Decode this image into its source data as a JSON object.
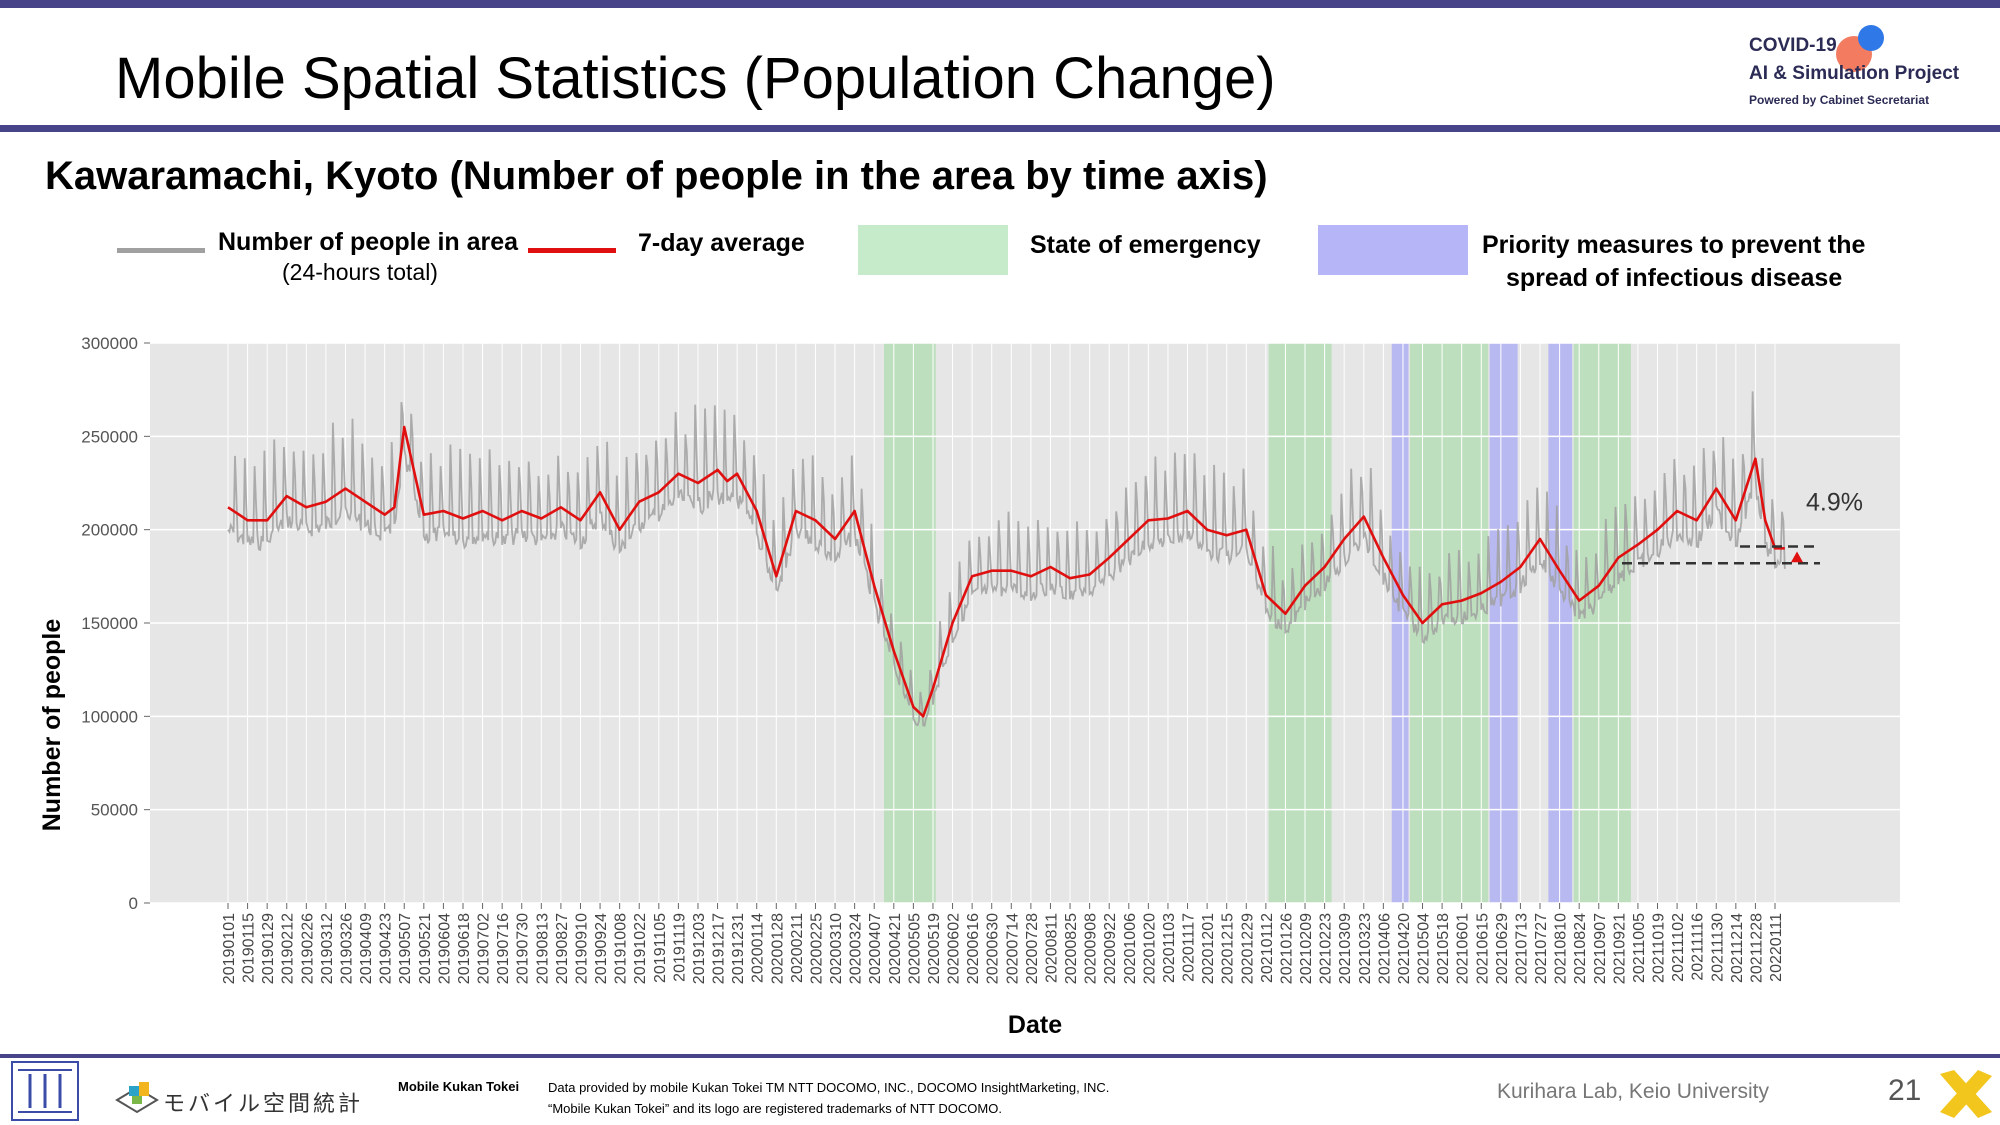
{
  "header": {
    "title": "Mobile Spatial Statistics (Population Change)",
    "logo_line1": "COVID-19",
    "logo_line2": "AI & Simulation Project",
    "logo_line3": "Powered by Cabinet Secretariat"
  },
  "subtitle": "Kawaramachi, Kyoto (Number of people in the area by time axis)",
  "legend": {
    "raw_label": "Number of people in area",
    "raw_sub": "(24-hours total)",
    "avg_label": "7-day average",
    "emergency_label": "State of emergency",
    "priority_label_1": "Priority measures to prevent the",
    "priority_label_2": "spread of infectious disease"
  },
  "colors": {
    "accent": "#48448a",
    "raw_line": "#a0a0a0",
    "avg_line": "#e01010",
    "emergency": "#a8dca8",
    "priority": "#aaaaf5",
    "plot_bg": "#e6e6e6"
  },
  "chart_data": {
    "type": "line",
    "xlabel": "Date",
    "ylabel": "Number of people",
    "ylim": [
      0,
      300000
    ],
    "yticks": [
      0,
      50000,
      100000,
      150000,
      200000,
      250000,
      300000
    ],
    "ytick_labels": [
      "0",
      "50000",
      "100000",
      "150000",
      "200000",
      "250000",
      "300000"
    ],
    "x_tick_labels": [
      "20190101",
      "20190115",
      "20190129",
      "20190212",
      "20190226",
      "20190312",
      "20190326",
      "20190409",
      "20190423",
      "20190507",
      "20190521",
      "20190604",
      "20190618",
      "20190702",
      "20190716",
      "20190730",
      "20190813",
      "20190827",
      "20190910",
      "20190924",
      "20191008",
      "20191022",
      "20191105",
      "20191119",
      "20191203",
      "20191217",
      "20191231",
      "20200114",
      "20200128",
      "20200211",
      "20200225",
      "20200310",
      "20200324",
      "20200407",
      "20200421",
      "20200505",
      "20200519",
      "20200602",
      "20200616",
      "20200630",
      "20200714",
      "20200728",
      "20200811",
      "20200825",
      "20200908",
      "20200922",
      "20201006",
      "20201020",
      "20201103",
      "20201117",
      "20201201",
      "20201215",
      "20201229",
      "20210112",
      "20210126",
      "20210209",
      "20210223",
      "20210309",
      "20210323",
      "20210406",
      "20210420",
      "20210504",
      "20210518",
      "20210601",
      "20210615",
      "20210629",
      "20210713",
      "20210727",
      "20210810",
      "20210824",
      "20210907",
      "20210921",
      "20211005",
      "20211019",
      "20211102",
      "20211116",
      "20211130",
      "20211214",
      "20211228",
      "20220111"
    ],
    "grid": true,
    "series": [
      {
        "name": "7-day average",
        "dates": [
          "20190101",
          "20190115",
          "20190129",
          "20190212",
          "20190226",
          "20190312",
          "20190326",
          "20190409",
          "20190423",
          "20190430",
          "20190507",
          "20190521",
          "20190604",
          "20190618",
          "20190702",
          "20190716",
          "20190730",
          "20190813",
          "20190827",
          "20190910",
          "20190924",
          "20191008",
          "20191022",
          "20191105",
          "20191119",
          "20191203",
          "20191217",
          "20191224",
          "20191231",
          "20200114",
          "20200128",
          "20200211",
          "20200225",
          "20200310",
          "20200324",
          "20200407",
          "20200421",
          "20200505",
          "20200512",
          "20200519",
          "20200602",
          "20200616",
          "20200630",
          "20200714",
          "20200728",
          "20200811",
          "20200825",
          "20200908",
          "20200922",
          "20201006",
          "20201020",
          "20201103",
          "20201117",
          "20201201",
          "20201215",
          "20201229",
          "20210112",
          "20210126",
          "20210209",
          "20210223",
          "20210309",
          "20210323",
          "20210406",
          "20210420",
          "20210504",
          "20210518",
          "20210601",
          "20210615",
          "20210629",
          "20210713",
          "20210727",
          "20210810",
          "20210824",
          "20210907",
          "20210921",
          "20211005",
          "20211019",
          "20211102",
          "20211116",
          "20211130",
          "20211214",
          "20211228",
          "20220104",
          "20220111",
          "20220118"
        ],
        "values": [
          212000,
          205000,
          205000,
          218000,
          212000,
          215000,
          222000,
          215000,
          208000,
          212000,
          255000,
          208000,
          210000,
          206000,
          210000,
          205000,
          210000,
          206000,
          212000,
          205000,
          220000,
          200000,
          215000,
          220000,
          230000,
          225000,
          232000,
          226000,
          230000,
          210000,
          175000,
          210000,
          205000,
          195000,
          210000,
          170000,
          135000,
          105000,
          100000,
          115000,
          150000,
          175000,
          178000,
          178000,
          175000,
          180000,
          174000,
          176000,
          185000,
          195000,
          205000,
          206000,
          210000,
          200000,
          197000,
          200000,
          165000,
          155000,
          170000,
          180000,
          195000,
          207000,
          185000,
          165000,
          150000,
          160000,
          162000,
          166000,
          172000,
          180000,
          195000,
          178000,
          162000,
          170000,
          185000,
          192000,
          200000,
          210000,
          205000,
          222000,
          205000,
          238000,
          205000,
          190000,
          190000
        ],
        "note_values": "7-day moving average, approximate"
      },
      {
        "name": "Number of people in area",
        "dates": [
          "20190101",
          "20190115",
          "20190129",
          "20190212",
          "20190226",
          "20190312",
          "20190326",
          "20190409",
          "20190423",
          "20190430",
          "20190507",
          "20190521",
          "20190604",
          "20190618",
          "20190702",
          "20190716",
          "20190730",
          "20190813",
          "20190827",
          "20190910",
          "20190924",
          "20191008",
          "20191022",
          "20191105",
          "20191119",
          "20191203",
          "20191217",
          "20191224",
          "20191231",
          "20200114",
          "20200128",
          "20200211",
          "20200225",
          "20200310",
          "20200324",
          "20200407",
          "20200421",
          "20200505",
          "20200512",
          "20200519",
          "20200602",
          "20200616",
          "20200630",
          "20200714",
          "20200728",
          "20200811",
          "20200825",
          "20200908",
          "20200922",
          "20201006",
          "20201020",
          "20201103",
          "20201117",
          "20201201",
          "20201215",
          "20201229",
          "20210112",
          "20210126",
          "20210209",
          "20210223",
          "20210309",
          "20210323",
          "20210406",
          "20210420",
          "20210504",
          "20210518",
          "20210601",
          "20210615",
          "20210629",
          "20210713",
          "20210727",
          "20210810",
          "20210824",
          "20210907",
          "20210921",
          "20211005",
          "20211019",
          "20211102",
          "20211116",
          "20211130",
          "20211214",
          "20211228",
          "20220104",
          "20220111",
          "20220118"
        ],
        "values": [
          212000,
          205000,
          205000,
          218000,
          212000,
          215000,
          222000,
          215000,
          208000,
          212000,
          255000,
          208000,
          210000,
          206000,
          210000,
          205000,
          210000,
          206000,
          212000,
          205000,
          220000,
          200000,
          215000,
          220000,
          230000,
          225000,
          232000,
          226000,
          230000,
          210000,
          175000,
          210000,
          205000,
          195000,
          210000,
          170000,
          135000,
          105000,
          100000,
          115000,
          150000,
          175000,
          178000,
          178000,
          175000,
          180000,
          174000,
          176000,
          185000,
          195000,
          205000,
          206000,
          210000,
          200000,
          197000,
          200000,
          165000,
          155000,
          170000,
          180000,
          195000,
          207000,
          185000,
          165000,
          150000,
          160000,
          162000,
          166000,
          172000,
          180000,
          195000,
          178000,
          162000,
          170000,
          185000,
          192000,
          200000,
          210000,
          205000,
          222000,
          205000,
          238000,
          205000,
          190000,
          190000
        ],
        "daily_swing_upper": 30000,
        "daily_swing_lower": 15000
      }
    ],
    "shaded_periods": [
      {
        "kind": "State of emergency",
        "start": "20200414",
        "end": "20200521"
      },
      {
        "kind": "State of emergency",
        "start": "20210114",
        "end": "20210228"
      },
      {
        "kind": "Priority measures to prevent the spread of infectious disease",
        "start": "20210412",
        "end": "20210424"
      },
      {
        "kind": "State of emergency",
        "start": "20210425",
        "end": "20210620"
      },
      {
        "kind": "Priority measures to prevent the spread of infectious disease",
        "start": "20210621",
        "end": "20210711"
      },
      {
        "kind": "Priority measures to prevent the spread of infectious disease",
        "start": "20210802",
        "end": "20210819"
      },
      {
        "kind": "State of emergency",
        "start": "20210820",
        "end": "20210930"
      }
    ],
    "annotation": {
      "text": "4.9%",
      "upper_value": 191000,
      "lower_value": 182000
    }
  },
  "footer": {
    "brand_jp": "モバイル空間統計",
    "brand_en": "Mobile Kukan Tokei",
    "credit_1": "Data provided by mobile Kukan Tokei TM NTT DOCOMO, INC., DOCOMO InsightMarketing, INC.",
    "credit_2": "“Mobile Kukan Tokei” and its logo are registered trademarks of NTT DOCOMO.",
    "lab": "Kurihara Lab, Keio University",
    "page": "21"
  }
}
